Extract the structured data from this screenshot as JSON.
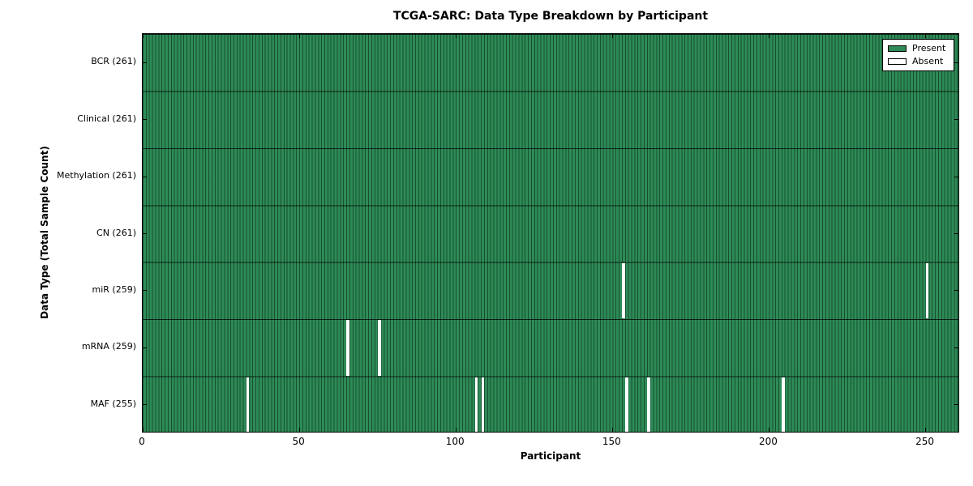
{
  "title": "TCGA-SARC: Data Type Breakdown by Participant",
  "axes": {
    "xlabel": "Participant",
    "ylabel": "Data Type (Total Sample Count)"
  },
  "legend": {
    "items": [
      {
        "label": "Present",
        "color": "#2e8b57"
      },
      {
        "label": "Absent",
        "color": "#ffffff"
      }
    ]
  },
  "colors": {
    "present": "#2e8b57",
    "absent": "#ffffff",
    "edge": "#000000",
    "background": "#ffffff"
  },
  "chart_data": {
    "type": "heatmap",
    "title": "TCGA-SARC: Data Type Breakdown by Participant",
    "xlabel": "Participant",
    "ylabel": "Data Type (Total Sample Count)",
    "legend_position": "upper right",
    "legend": [
      "Present",
      "Absent"
    ],
    "x_ticks": [
      0,
      50,
      100,
      150,
      200,
      250
    ],
    "x_range": [
      0,
      261
    ],
    "n_participants": 261,
    "grid": false,
    "rows": [
      {
        "label": "BCR (261)",
        "data_type": "BCR",
        "total_samples": 261,
        "present_count": 261,
        "absent_participants": []
      },
      {
        "label": "Clinical (261)",
        "data_type": "Clinical",
        "total_samples": 261,
        "present_count": 261,
        "absent_participants": []
      },
      {
        "label": "Methylation (261)",
        "data_type": "Methylation",
        "total_samples": 261,
        "present_count": 261,
        "absent_participants": []
      },
      {
        "label": "CN (261)",
        "data_type": "CN",
        "total_samples": 261,
        "present_count": 261,
        "absent_participants": []
      },
      {
        "label": "miR (259)",
        "data_type": "miR",
        "total_samples": 259,
        "present_count": 259,
        "absent_participants": [
          153,
          250
        ]
      },
      {
        "label": "mRNA (259)",
        "data_type": "mRNA",
        "total_samples": 259,
        "present_count": 259,
        "absent_participants": [
          65,
          75
        ]
      },
      {
        "label": "MAF (255)",
        "data_type": "MAF",
        "total_samples": 255,
        "present_count": 255,
        "absent_participants": [
          33,
          106,
          108,
          154,
          161,
          204
        ]
      }
    ]
  }
}
